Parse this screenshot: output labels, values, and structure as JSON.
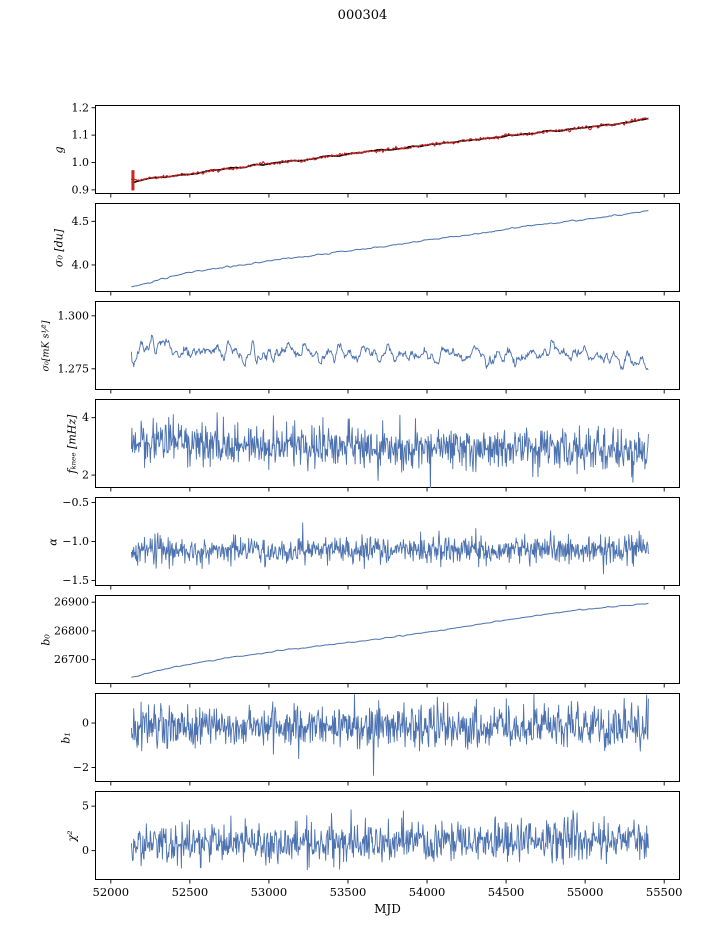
{
  "figure_title": "000304",
  "chart_data": {
    "type": "line",
    "title": "000304",
    "xlabel": "MJD",
    "x_range": [
      51900,
      55600
    ],
    "x_data_range": [
      52130,
      55400
    ],
    "x_ticks": [
      52000,
      52500,
      53000,
      53500,
      54000,
      54500,
      55000,
      55500
    ],
    "x_tick_labels": [
      "52000",
      "52500",
      "53000",
      "53500",
      "54000",
      "54500",
      "55000",
      "55500"
    ],
    "legend": "none",
    "grid": false,
    "panels": [
      {
        "ylabel": "g",
        "ylim": [
          0.885,
          1.21
        ],
        "yticks": [
          0.9,
          1.0,
          1.1,
          1.2
        ],
        "ytick_labels": [
          "0.9",
          "1.0",
          "1.1",
          "1.2"
        ],
        "series": [
          {
            "name": "g-smoothed-fit",
            "color": "#000000",
            "width": 1.6,
            "noise": 0.0015,
            "window": 9,
            "n": 500,
            "seed": 11,
            "anchors": [
              [
                52130,
                0.932
              ],
              [
                52250,
                0.942
              ],
              [
                52400,
                0.951
              ],
              [
                52550,
                0.962
              ],
              [
                52700,
                0.975
              ],
              [
                52850,
                0.985
              ],
              [
                53000,
                0.996
              ],
              [
                53150,
                1.004
              ],
              [
                53300,
                1.013
              ],
              [
                53450,
                1.027
              ],
              [
                53600,
                1.038
              ],
              [
                53750,
                1.047
              ],
              [
                53900,
                1.055
              ],
              [
                54050,
                1.068
              ],
              [
                54200,
                1.077
              ],
              [
                54350,
                1.086
              ],
              [
                54500,
                1.097
              ],
              [
                54650,
                1.105
              ],
              [
                54800,
                1.114
              ],
              [
                54950,
                1.124
              ],
              [
                55100,
                1.133
              ],
              [
                55250,
                1.145
              ],
              [
                55350,
                1.157
              ],
              [
                55400,
                1.162
              ]
            ]
          },
          {
            "name": "g-gain",
            "color": "#cc2222",
            "width": 1.1,
            "noise": 0.0028,
            "window": 3,
            "n": 900,
            "seed": 23,
            "anchors": [
              [
                52130,
                0.932
              ],
              [
                52250,
                0.942
              ],
              [
                52400,
                0.951
              ],
              [
                52550,
                0.962
              ],
              [
                52700,
                0.975
              ],
              [
                52850,
                0.985
              ],
              [
                53000,
                0.996
              ],
              [
                53150,
                1.004
              ],
              [
                53300,
                1.013
              ],
              [
                53450,
                1.027
              ],
              [
                53600,
                1.038
              ],
              [
                53750,
                1.047
              ],
              [
                53900,
                1.055
              ],
              [
                54050,
                1.068
              ],
              [
                54200,
                1.077
              ],
              [
                54350,
                1.086
              ],
              [
                54500,
                1.097
              ],
              [
                54650,
                1.105
              ],
              [
                54800,
                1.114
              ],
              [
                54950,
                1.124
              ],
              [
                55100,
                1.133
              ],
              [
                55250,
                1.145
              ],
              [
                55350,
                1.157
              ],
              [
                55400,
                1.162
              ]
            ]
          }
        ],
        "extras": [
          {
            "type": "vline",
            "x": 52140,
            "y1": 0.898,
            "y2": 0.972,
            "color": "#cc2222",
            "width": 3
          }
        ]
      },
      {
        "ylabel": "σ₀ [du]",
        "ylim": [
          3.69,
          4.71
        ],
        "yticks": [
          4.0,
          4.5
        ],
        "ytick_labels": [
          "4.0",
          "4.5"
        ],
        "series": [
          {
            "name": "sigma0-du",
            "color": "#4c72b0",
            "width": 1.0,
            "noise": 0.004,
            "window": 5,
            "n": 650,
            "seed": 31,
            "anchors": [
              [
                52130,
                3.745
              ],
              [
                52250,
                3.8
              ],
              [
                52400,
                3.88
              ],
              [
                52550,
                3.93
              ],
              [
                52700,
                3.97
              ],
              [
                52850,
                4.0
              ],
              [
                53000,
                4.05
              ],
              [
                53200,
                4.09
              ],
              [
                53400,
                4.14
              ],
              [
                53600,
                4.18
              ],
              [
                53800,
                4.23
              ],
              [
                54000,
                4.29
              ],
              [
                54200,
                4.33
              ],
              [
                54400,
                4.38
              ],
              [
                54600,
                4.44
              ],
              [
                54800,
                4.48
              ],
              [
                55000,
                4.52
              ],
              [
                55200,
                4.57
              ],
              [
                55400,
                4.62
              ]
            ]
          }
        ],
        "extras": []
      },
      {
        "ylabel": "σ₀[mK s¹⁄²]",
        "ylim": [
          1.265,
          1.307
        ],
        "yticks": [
          1.275,
          1.3
        ],
        "ytick_labels": [
          "1.275",
          "1.300"
        ],
        "series": [
          {
            "name": "sigma0-mK",
            "color": "#4c72b0",
            "width": 0.9,
            "noise": 0.0021,
            "window": 6,
            "n": 850,
            "seed": 47,
            "anchors": [
              [
                52130,
                1.279
              ],
              [
                52200,
                1.285
              ],
              [
                52300,
                1.287
              ],
              [
                52450,
                1.283
              ],
              [
                52700,
                1.284
              ],
              [
                52900,
                1.281
              ],
              [
                53100,
                1.284
              ],
              [
                53300,
                1.281
              ],
              [
                53600,
                1.283
              ],
              [
                53900,
                1.28
              ],
              [
                54200,
                1.282
              ],
              [
                54500,
                1.28
              ],
              [
                54800,
                1.283
              ],
              [
                55100,
                1.281
              ],
              [
                55300,
                1.28
              ],
              [
                55400,
                1.276
              ]
            ]
          }
        ],
        "extras": []
      },
      {
        "ylabel": "fₖₙₑₑ [mHz]",
        "ylim": [
          1.55,
          4.65
        ],
        "yticks": [
          2,
          4
        ],
        "ytick_labels": [
          "2",
          "4"
        ],
        "series": [
          {
            "name": "f-knee",
            "color": "#4c72b0",
            "width": 0.9,
            "noise": 0.38,
            "window": 1,
            "n": 900,
            "seed": 59,
            "anchors": [
              [
                52130,
                3.3
              ],
              [
                52500,
                3.1
              ],
              [
                53000,
                3.0
              ],
              [
                54000,
                2.95
              ],
              [
                55400,
                2.85
              ]
            ]
          }
        ],
        "extras": []
      },
      {
        "ylabel": "α",
        "ylim": [
          -1.57,
          -0.43
        ],
        "yticks": [
          -1.5,
          -1.0,
          -0.5
        ],
        "ytick_labels": [
          "−1.5",
          "−1.0",
          "−0.5"
        ],
        "series": [
          {
            "name": "alpha",
            "color": "#4c72b0",
            "width": 0.9,
            "noise": 0.085,
            "window": 1,
            "n": 900,
            "seed": 67,
            "anchors": [
              [
                52130,
                -1.12
              ],
              [
                53500,
                -1.11
              ],
              [
                55400,
                -1.1
              ]
            ]
          }
        ],
        "extras": []
      },
      {
        "ylabel": "b₀",
        "ylim": [
          26615,
          26925
        ],
        "yticks": [
          26700,
          26800,
          26900
        ],
        "ytick_labels": [
          "26700",
          "26800",
          "26900"
        ],
        "series": [
          {
            "name": "b0-baseline",
            "color": "#4c72b0",
            "width": 1.0,
            "noise": 1.0,
            "window": 5,
            "n": 550,
            "seed": 71,
            "anchors": [
              [
                52130,
                26638
              ],
              [
                52300,
                26662
              ],
              [
                52500,
                26684
              ],
              [
                52700,
                26703
              ],
              [
                52900,
                26718
              ],
              [
                53100,
                26733
              ],
              [
                53300,
                26747
              ],
              [
                53600,
                26765
              ],
              [
                53900,
                26788
              ],
              [
                54200,
                26812
              ],
              [
                54500,
                26838
              ],
              [
                54800,
                26862
              ],
              [
                55000,
                26874
              ],
              [
                55200,
                26886
              ],
              [
                55400,
                26896
              ]
            ]
          }
        ],
        "extras": []
      },
      {
        "ylabel": "b₁",
        "ylim": [
          -2.65,
          1.35
        ],
        "yticks": [
          -2,
          0
        ],
        "ytick_labels": [
          "−2",
          "0"
        ],
        "series": [
          {
            "name": "b1-slope",
            "color": "#4c72b0",
            "width": 0.9,
            "noise": 0.5,
            "window": 1,
            "n": 900,
            "seed": 83,
            "spikes": [
              [
                53660,
                -2.35
              ]
            ],
            "anchors": [
              [
                52130,
                -0.2
              ],
              [
                53800,
                -0.15
              ],
              [
                55400,
                -0.1
              ]
            ]
          }
        ],
        "extras": []
      },
      {
        "ylabel": "χ²",
        "ylim": [
          -3.3,
          6.7
        ],
        "yticks": [
          0,
          5
        ],
        "ytick_labels": [
          "0",
          "5"
        ],
        "series": [
          {
            "name": "chi2",
            "color": "#4c72b0",
            "width": 0.9,
            "noise": 1.15,
            "window": 1,
            "n": 900,
            "seed": 97,
            "anchors": [
              [
                52130,
                0.6
              ],
              [
                53000,
                0.8
              ],
              [
                54000,
                0.9
              ],
              [
                54800,
                1.3
              ],
              [
                55400,
                1.2
              ]
            ]
          }
        ],
        "extras": []
      }
    ]
  }
}
